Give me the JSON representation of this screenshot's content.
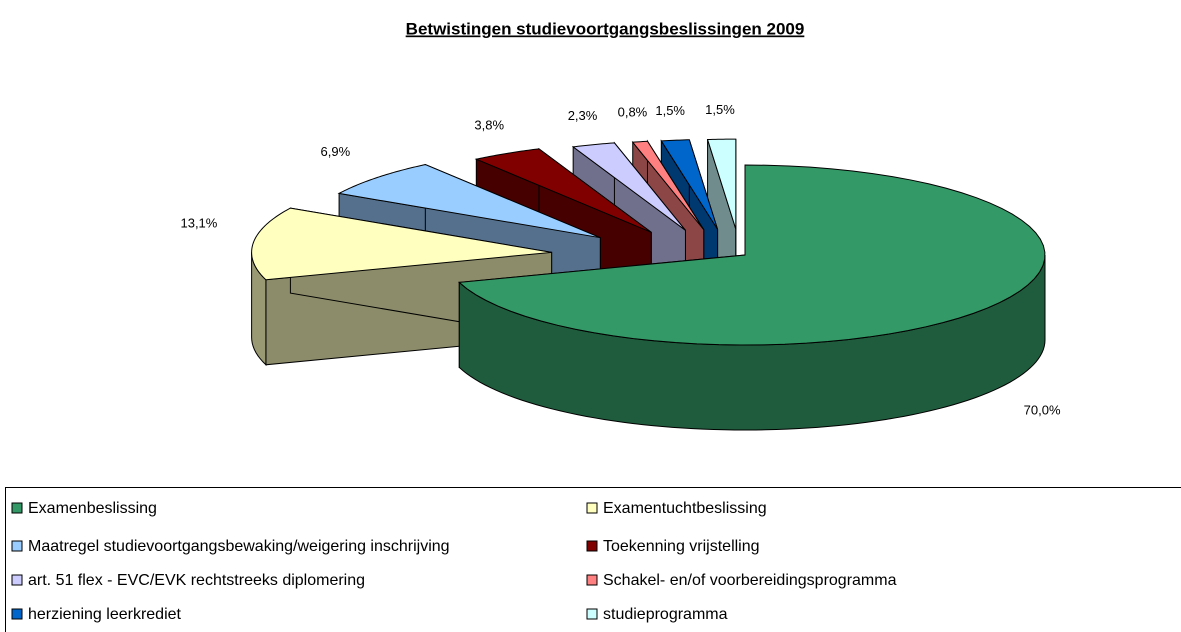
{
  "chart_data": {
    "type": "pie3d",
    "title": "Betwistingen studievoortgangsbeslissingen 2009",
    "categories": [
      "Examenbeslissing",
      "Examentuchtbeslissing",
      "Maatregel studievoortgangsbewaking/weigering inschrijving",
      "Toekenning vrijstelling",
      "art. 51 flex - EVC/EVK rechtstreeks diplomering",
      "Schakel- en/of voorbereidingsprogramma",
      "herziening leerkrediet",
      "studieprogramma"
    ],
    "values": [
      70.0,
      13.1,
      6.9,
      3.8,
      2.3,
      0.8,
      1.5,
      1.5
    ],
    "value_labels": [
      "70,0%",
      "13,1%",
      "6,9%",
      "3,8%",
      "2,3%",
      "0,8%",
      "1,5%",
      "1,5%"
    ],
    "colors": [
      "#339966",
      "#ffffc0",
      "#99ccff",
      "#800000",
      "#ccccff",
      "#ff8080",
      "#0066cc",
      "#ccffff"
    ],
    "legend": "bottom"
  }
}
